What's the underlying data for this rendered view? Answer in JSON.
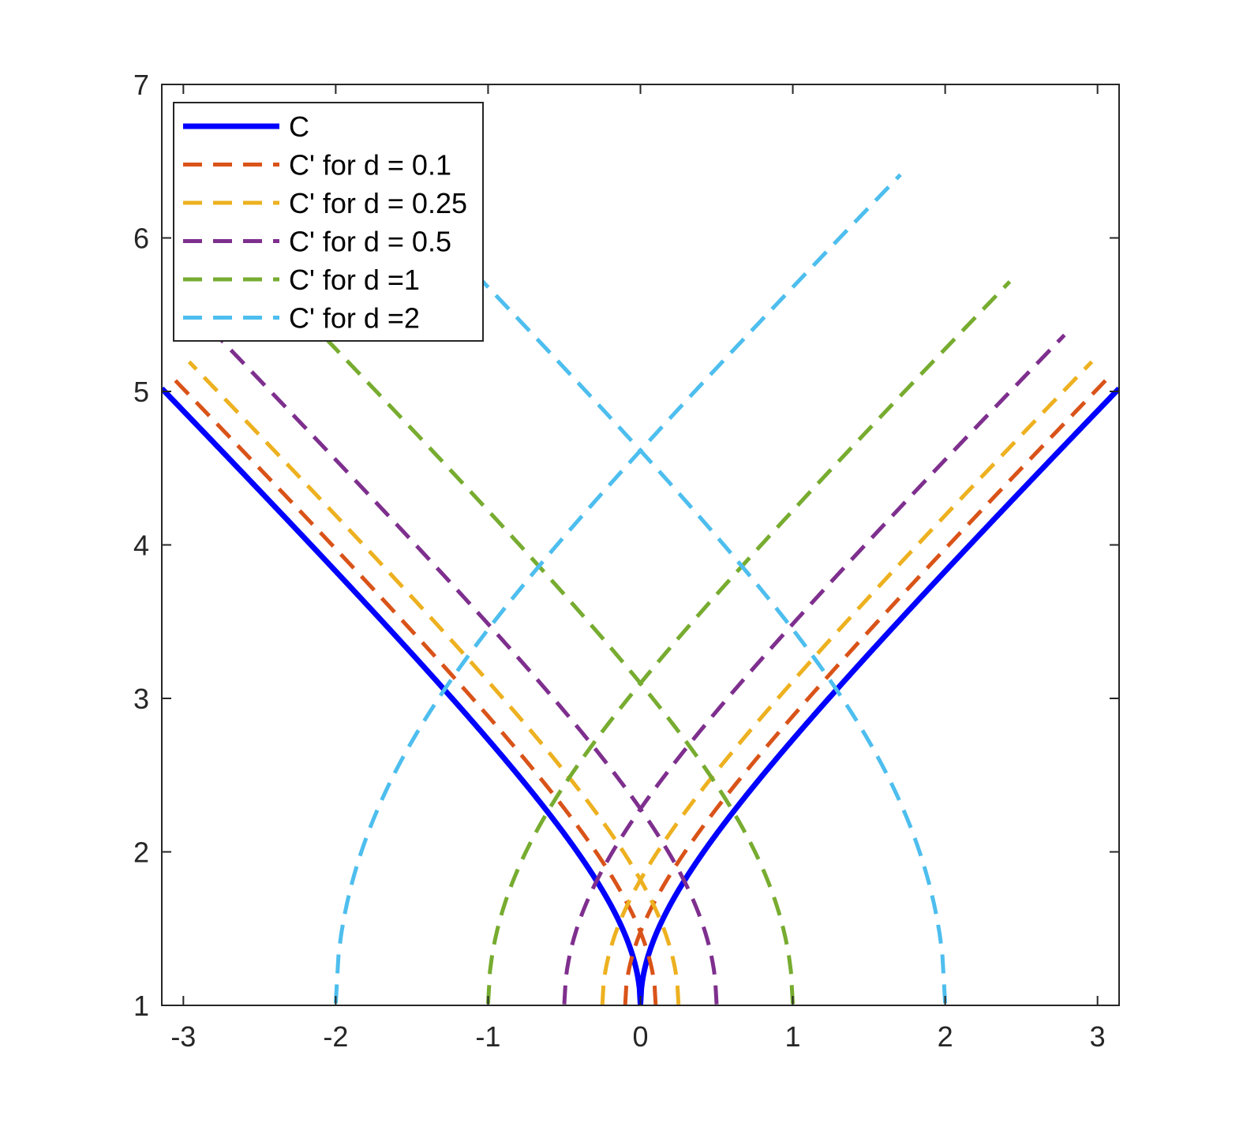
{
  "chart_data": {
    "type": "line",
    "title": "",
    "xlabel": "",
    "ylabel": "",
    "xlim": [
      -3.14159,
      3.14159
    ],
    "ylim": [
      1,
      7
    ],
    "xticks": [
      -3,
      -2,
      -1,
      0,
      1,
      2,
      3
    ],
    "yticks": [
      1,
      2,
      3,
      4,
      5,
      6,
      7
    ],
    "xtick_labels": [
      "-3",
      "-2",
      "-1",
      "0",
      "1",
      "2",
      "3"
    ],
    "ytick_labels": [
      "1",
      "2",
      "3",
      "4",
      "5",
      "6",
      "7"
    ],
    "grid": false,
    "legend_position": "top-left",
    "curve": "y = 1 + sqrt(x^2 + 2|x|)",
    "series": [
      {
        "name": "C",
        "style": "solid",
        "color": "#0000FF",
        "offset": 0
      },
      {
        "name": "C' for d = 0.1",
        "style": "dashed",
        "color": "#D95319",
        "offset": 0.1
      },
      {
        "name": "C' for d = 0.25",
        "style": "dashed",
        "color": "#EDB120",
        "offset": 0.25
      },
      {
        "name": "C' for d = 0.5",
        "style": "dashed",
        "color": "#7E2F8E",
        "offset": 0.5
      },
      {
        "name": "C' for d =1",
        "style": "dashed",
        "color": "#77AC30",
        "offset": 1
      },
      {
        "name": "C' for d =2",
        "style": "dashed",
        "color": "#4DBEEE",
        "offset": 2
      }
    ]
  }
}
